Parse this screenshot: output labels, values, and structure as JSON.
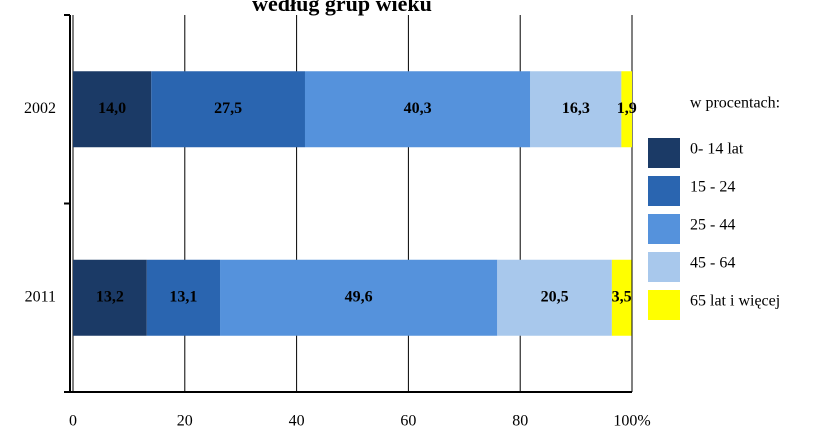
{
  "chart_data": {
    "type": "bar",
    "orientation": "horizontal",
    "stacked": true,
    "title": "według grup wieku",
    "legend_title": "w procentach:",
    "categories": [
      "2002",
      "2011"
    ],
    "series": [
      {
        "name": "0- 14 lat",
        "color": "#1b3a66",
        "values": [
          14.0,
          13.2
        ],
        "value_labels": [
          "14,0",
          "13,2"
        ]
      },
      {
        "name": "15 - 24",
        "color": "#2a65b0",
        "values": [
          27.5,
          13.1
        ],
        "value_labels": [
          "27,5",
          "13,1"
        ]
      },
      {
        "name": "25 - 44",
        "color": "#5592dc",
        "values": [
          40.3,
          49.6
        ],
        "value_labels": [
          "40,3",
          "49,6"
        ]
      },
      {
        "name": "45 - 64",
        "color": "#a8c8ec",
        "values": [
          16.3,
          20.5
        ],
        "value_labels": [
          "16,3",
          "20,5"
        ]
      },
      {
        "name": "65 lat i więcej",
        "color": "#ffff00",
        "values": [
          1.9,
          3.5
        ],
        "value_labels": [
          "1,9",
          "3,5"
        ]
      }
    ],
    "xlim": [
      0,
      100
    ],
    "xticks": [
      0,
      20,
      40,
      60,
      80,
      {
        "value": 100,
        "label": "100%"
      }
    ],
    "grid": true,
    "legend": "right"
  }
}
